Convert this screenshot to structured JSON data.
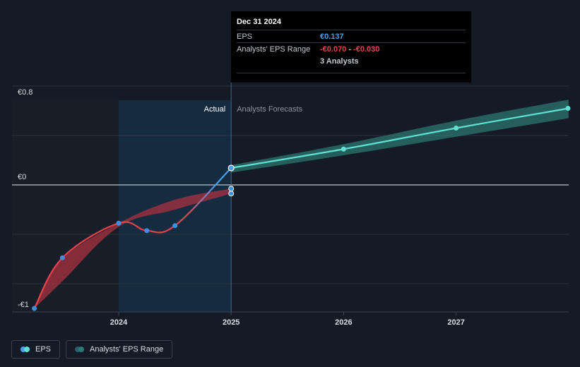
{
  "chart_data": {
    "type": "line",
    "currency_axis_labels": {
      "top": "€0.8",
      "zero": "€0",
      "bottom": "-€1"
    },
    "x_ticks": [
      "2024",
      "2025",
      "2026",
      "2027"
    ],
    "ylim": [
      -1,
      0.8
    ],
    "region_labels": {
      "actual": "Actual",
      "forecast": "Analysts Forecasts"
    },
    "eps_actual": [
      {
        "x": 2023.25,
        "y": -1.0
      },
      {
        "x": 2023.5,
        "y": -0.59
      },
      {
        "x": 2024.0,
        "y": -0.31
      },
      {
        "x": 2024.25,
        "y": -0.37
      },
      {
        "x": 2024.5,
        "y": -0.33
      },
      {
        "x": 2025.0,
        "y": 0.137
      }
    ],
    "eps_forecast": [
      {
        "x": 2025.0,
        "y": 0.137
      },
      {
        "x": 2026.0,
        "y": 0.29
      },
      {
        "x": 2027.0,
        "y": 0.46
      },
      {
        "x": 2028.0,
        "y": 0.62
      }
    ],
    "eps_range_historic": [
      {
        "x": 2023.25,
        "low": -1.0,
        "high": -1.0
      },
      {
        "x": 2023.5,
        "low": -0.78,
        "high": -0.6
      },
      {
        "x": 2024.0,
        "low": -0.34,
        "high": -0.31
      },
      {
        "x": 2024.5,
        "low": -0.2,
        "high": -0.12
      },
      {
        "x": 2025.0,
        "low": -0.07,
        "high": -0.03
      }
    ],
    "eps_range_forecast": [
      {
        "x": 2025.0,
        "low": 0.1,
        "high": 0.16
      },
      {
        "x": 2026.0,
        "low": 0.24,
        "high": 0.33
      },
      {
        "x": 2027.0,
        "low": 0.39,
        "high": 0.52
      },
      {
        "x": 2028.0,
        "low": 0.54,
        "high": 0.69
      }
    ],
    "range_endpoints_2025": [
      -0.03,
      -0.07
    ],
    "colors": {
      "eps_actual_start": "#e8424e",
      "eps_actual_end": "#4a9fe8",
      "eps_forecast": "#5fe0d2",
      "range_historic": "#a8323f",
      "range_forecast": "#2e7a72",
      "highlight": "#16324a"
    }
  },
  "tooltip": {
    "date": "Dec 31 2024",
    "eps_label": "EPS",
    "eps_value": "€0.137",
    "range_label": "Analysts' EPS Range",
    "range_low": "-€0.070",
    "range_sep": " - ",
    "range_high": "-€0.030",
    "analysts": "3 Analysts"
  },
  "legend": {
    "eps": "EPS",
    "range": "Analysts' EPS Range"
  }
}
